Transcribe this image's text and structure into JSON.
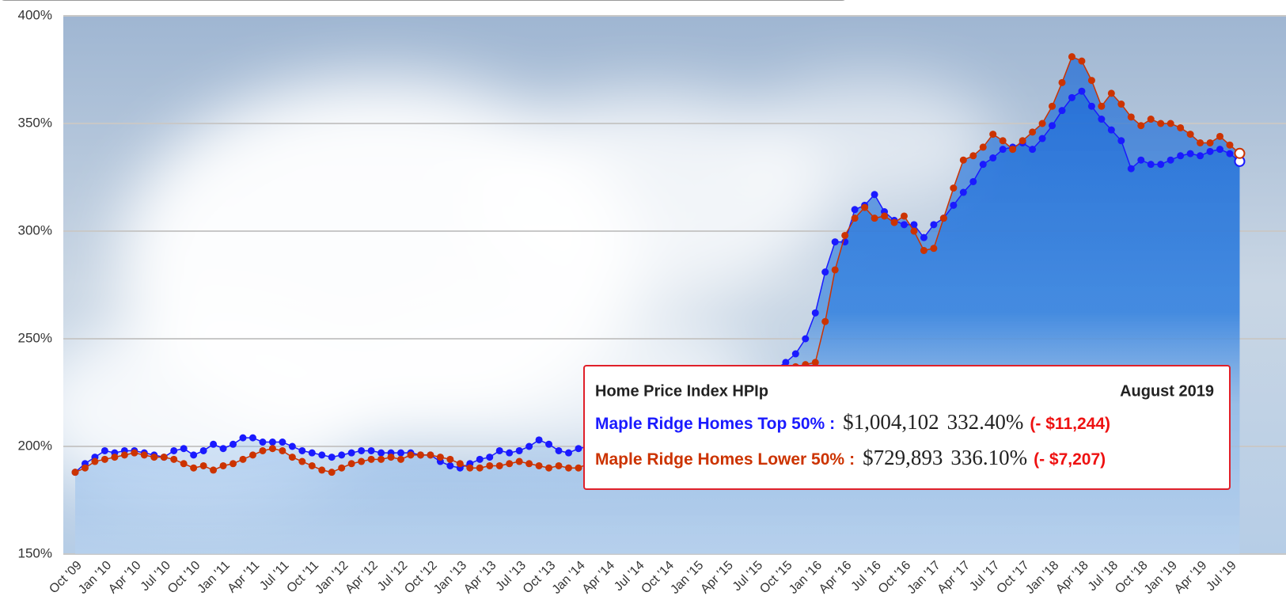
{
  "chart_data": {
    "type": "line",
    "categories": [
      "Oct '09",
      null,
      null,
      "Jan '10",
      null,
      null,
      "Apr '10",
      null,
      null,
      "Jul '10",
      null,
      null,
      "Oct '10",
      null,
      null,
      "Jan '11",
      null,
      null,
      "Apr '11",
      null,
      null,
      "Jul '11",
      null,
      null,
      "Oct '11",
      null,
      null,
      "Jan '12",
      null,
      null,
      "Apr '12",
      null,
      null,
      "Jul '12",
      null,
      null,
      "Oct '12",
      null,
      null,
      "Jan '13",
      null,
      null,
      "Apr '13",
      null,
      null,
      "Jul '13",
      null,
      null,
      "Oct '13",
      null,
      null,
      "Jan '14",
      null,
      null,
      "Apr '14",
      null,
      null,
      "Jul '14",
      null,
      null,
      "Oct '14",
      null,
      null,
      "Jan '15",
      null,
      null,
      "Apr '15",
      null,
      null,
      "Jul '15",
      null,
      null,
      "Oct '15",
      null,
      null,
      "Jan '16",
      null,
      null,
      "Apr '16",
      null,
      null,
      "Jul '16",
      null,
      null,
      "Oct '16",
      null,
      null,
      "Jan '17",
      null,
      null,
      "Apr '17",
      null,
      null,
      "Jul '17",
      null,
      null,
      "Oct '17",
      null,
      null,
      "Jan '18",
      null,
      null,
      "Apr '18",
      null,
      null,
      "Jul '18",
      null,
      null,
      "Oct '18",
      null,
      null,
      "Jan '19",
      null,
      null,
      "Apr '19",
      null,
      null,
      "Jul '19",
      null
    ],
    "series": [
      {
        "name": "Maple Ridge Homes Top 50%",
        "color": "#1a1aff",
        "values": [
          188,
          192,
          195,
          198,
          197,
          198,
          198,
          197,
          196,
          195,
          198,
          199,
          196,
          198,
          201,
          199,
          201,
          204,
          204,
          202,
          202,
          202,
          200,
          198,
          197,
          196,
          195,
          196,
          197,
          198,
          198,
          197,
          197,
          197,
          197,
          196,
          196,
          193,
          191,
          190,
          192,
          194,
          195,
          198,
          197,
          198,
          200,
          203,
          201,
          198,
          197,
          199,
          200,
          201,
          203,
          205,
          206,
          206,
          205,
          205,
          206,
          208,
          211,
          214,
          217,
          219,
          221,
          224,
          227,
          230,
          233,
          236,
          239,
          243,
          250,
          262,
          281,
          295,
          295,
          310,
          312,
          317,
          309,
          305,
          303,
          303,
          297,
          303,
          306,
          312,
          318,
          323,
          331,
          334,
          338,
          339,
          341,
          338,
          343,
          349,
          356,
          362,
          365,
          358,
          352,
          347,
          342,
          329,
          333,
          331,
          331,
          333,
          335,
          336,
          335,
          337,
          338,
          336,
          332.4
        ]
      },
      {
        "name": "Maple Ridge Homes Lower 50%",
        "color": "#cc3300",
        "values": [
          188,
          190,
          193,
          194,
          195,
          196,
          197,
          196,
          195,
          195,
          194,
          192,
          190,
          191,
          189,
          191,
          192,
          194,
          196,
          198,
          199,
          198,
          195,
          193,
          191,
          189,
          188,
          190,
          192,
          193,
          194,
          194,
          195,
          194,
          196,
          196,
          196,
          195,
          194,
          192,
          190,
          190,
          191,
          191,
          192,
          193,
          192,
          191,
          190,
          191,
          190,
          190,
          192,
          195,
          198,
          200,
          201,
          202,
          203,
          204,
          205,
          207,
          209,
          211,
          213,
          215,
          218,
          221,
          224,
          227,
          230,
          233,
          236,
          237,
          238,
          239,
          258,
          282,
          298,
          306,
          311,
          306,
          307,
          304,
          307,
          300,
          291,
          292,
          306,
          320,
          333,
          335,
          339,
          345,
          342,
          338,
          342,
          346,
          350,
          358,
          369,
          381,
          379,
          370,
          358,
          364,
          359,
          353,
          349,
          352,
          350,
          350,
          348,
          345,
          341,
          341,
          344,
          340,
          336.1
        ]
      }
    ],
    "ylim": [
      150,
      400
    ],
    "yticks": [
      {
        "value": 150,
        "label": "150%"
      },
      {
        "value": 200,
        "label": "200%"
      },
      {
        "value": 250,
        "label": "250%"
      },
      {
        "value": 300,
        "label": "300%"
      },
      {
        "value": 350,
        "label": "350%"
      },
      {
        "value": 400,
        "label": "400%"
      }
    ],
    "grid": true,
    "tooltip": {
      "title": "Home Price Index HPIp",
      "date": "August 2019",
      "separator": ":",
      "rows": [
        {
          "price": "$1,004,102",
          "percent": "332.40%",
          "change": "(- $11,244)"
        },
        {
          "price": "$729,893",
          "percent": "336.10%",
          "change": "(- $7,207)"
        }
      ]
    }
  }
}
